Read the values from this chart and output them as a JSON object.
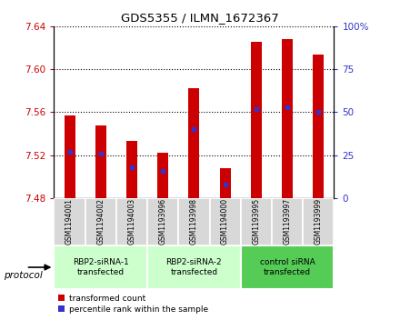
{
  "title": "GDS5355 / ILMN_1672367",
  "samples": [
    "GSM1194001",
    "GSM1194002",
    "GSM1194003",
    "GSM1193996",
    "GSM1193998",
    "GSM1194000",
    "GSM1193995",
    "GSM1193997",
    "GSM1193999"
  ],
  "bar_tops": [
    7.557,
    7.548,
    7.533,
    7.522,
    7.582,
    7.508,
    7.626,
    7.628,
    7.614
  ],
  "bar_bottom": 7.48,
  "percentile_ranks": [
    27,
    26,
    18,
    16,
    40,
    8,
    52,
    53,
    50
  ],
  "ylim_left": [
    7.48,
    7.64
  ],
  "ylim_right": [
    0,
    100
  ],
  "yticks_left": [
    7.48,
    7.52,
    7.56,
    7.6,
    7.64
  ],
  "yticks_right": [
    0,
    25,
    50,
    75,
    100
  ],
  "bar_color": "#CC0000",
  "percentile_color": "#3333CC",
  "group_labels": [
    "RBP2-siRNA-1\ntransfected",
    "RBP2-siRNA-2\ntransfected",
    "control siRNA\ntransfected"
  ],
  "group_ranges": [
    [
      0,
      3
    ],
    [
      3,
      6
    ],
    [
      6,
      9
    ]
  ],
  "group_colors": [
    "#ccffcc",
    "#ccffcc",
    "#55cc55"
  ],
  "legend_red": "transformed count",
  "legend_blue": "percentile rank within the sample"
}
